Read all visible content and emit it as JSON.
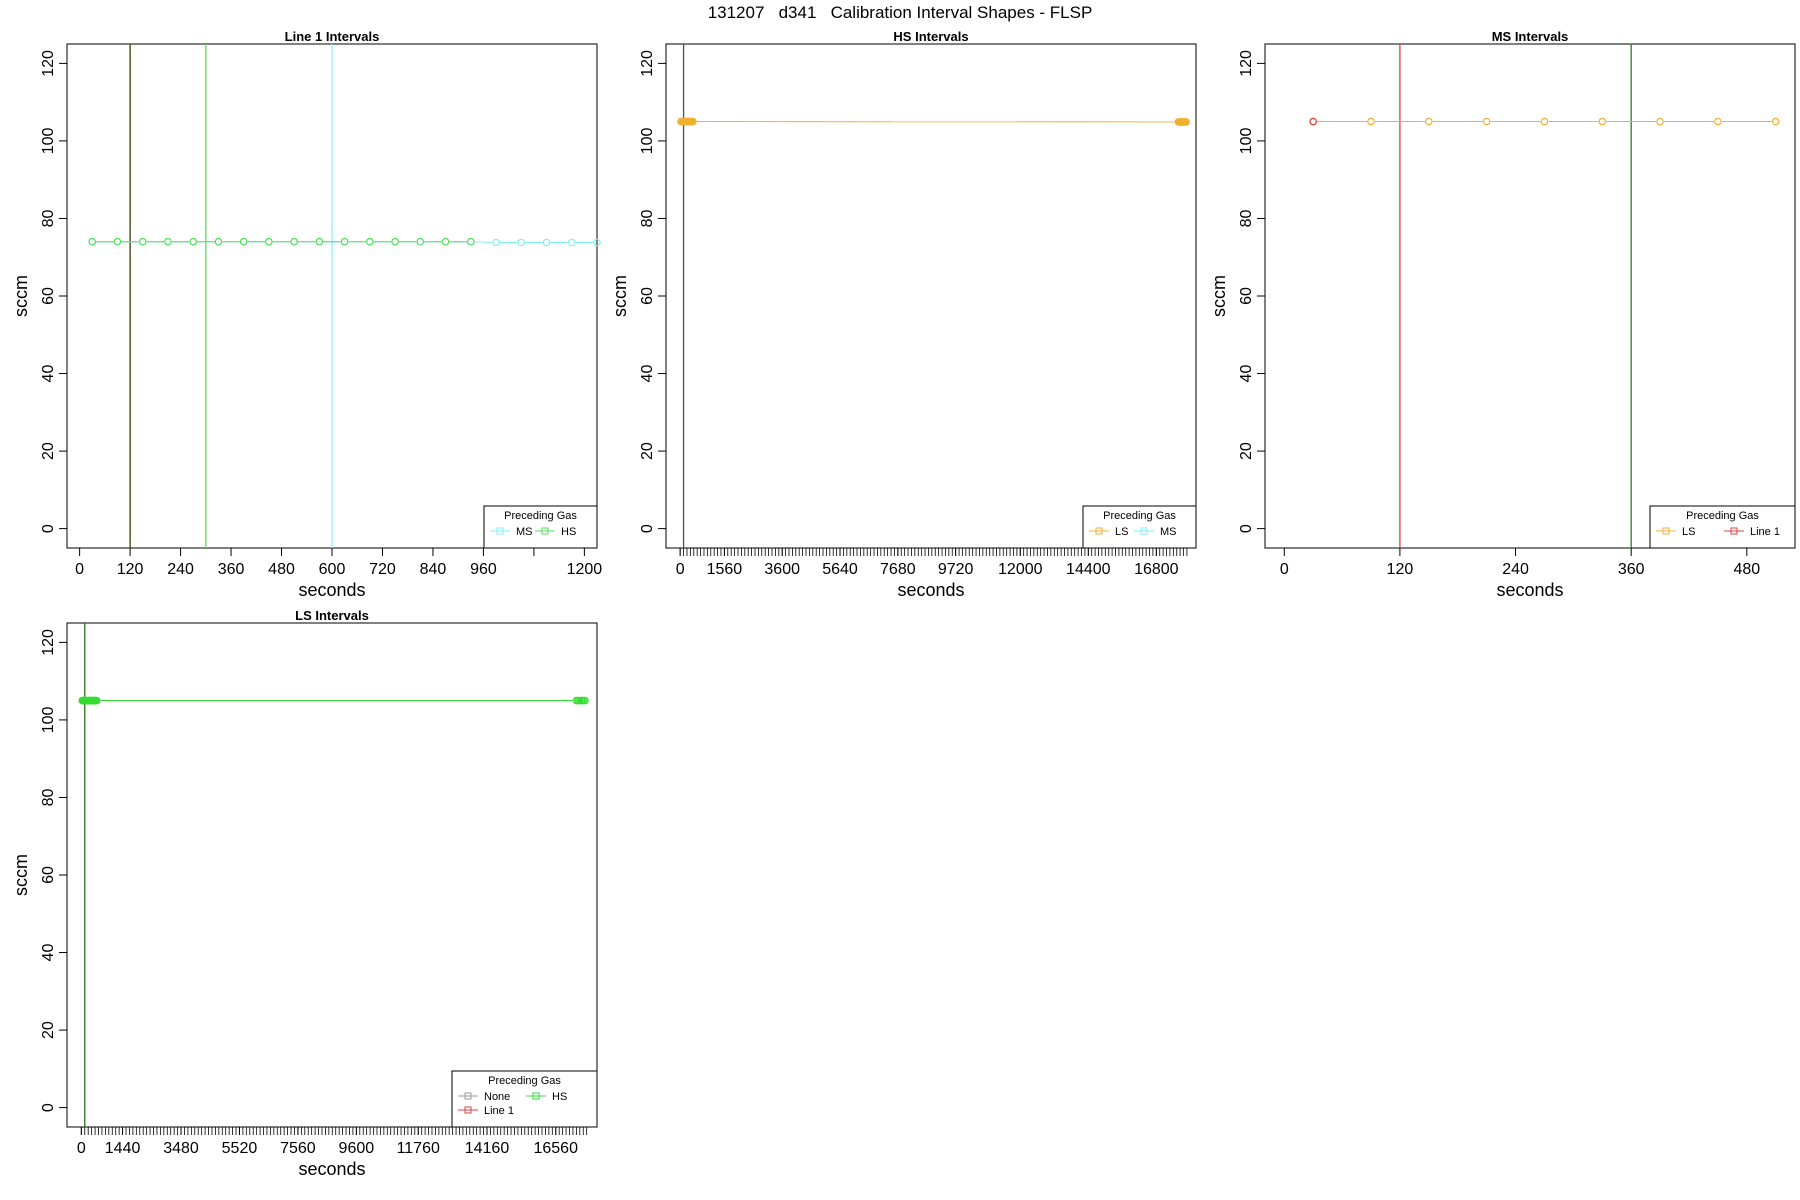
{
  "figure_title": "131207   d341   Calibration Interval Shapes - FLSP",
  "chart_data": [
    {
      "type": "scatter",
      "title": "Line 1 Intervals",
      "xlabel": "seconds",
      "ylabel": "sccm",
      "xlim": [
        -30,
        1230
      ],
      "ylim": [
        -5,
        125
      ],
      "xticks": [
        0,
        120,
        240,
        360,
        480,
        600,
        720,
        840,
        960,
        1080,
        1200
      ],
      "xtick_labels": [
        "0",
        "120",
        "240",
        "360",
        "480",
        "600",
        "720",
        "840",
        "960",
        "",
        "1200"
      ],
      "yticks": [
        0,
        20,
        40,
        60,
        80,
        100,
        120
      ],
      "vlines": [
        {
          "x": 120,
          "color": "#2e6b1e"
        },
        {
          "x": 120,
          "color": "#5a4a1e"
        },
        {
          "x": 300,
          "color": "#55e055"
        },
        {
          "x": 600,
          "color": "#8ef2f2"
        }
      ],
      "series": [
        {
          "name": "MS",
          "color": "#7ff0f0",
          "x": [
            30,
            90,
            150,
            210,
            270,
            330,
            390,
            450,
            510,
            570,
            630,
            690,
            750,
            810,
            870,
            930,
            990,
            1050,
            1110,
            1170,
            1230
          ],
          "y": [
            74,
            74,
            74,
            74,
            74,
            74,
            74,
            74,
            74,
            74,
            74,
            74,
            74,
            74,
            74,
            74,
            73.8,
            73.8,
            73.8,
            73.8,
            73.8
          ]
        },
        {
          "name": "HS",
          "color": "#55e055",
          "x": [
            30,
            90,
            150,
            210,
            270,
            330,
            390,
            450,
            510,
            570,
            630,
            690,
            750,
            810,
            870,
            930
          ],
          "y": [
            74,
            74,
            74,
            74,
            74,
            74,
            74,
            74,
            74,
            74,
            74,
            74,
            74,
            74,
            74,
            74
          ]
        }
      ],
      "legend": {
        "title": "Preceding Gas",
        "position": "bottom-right",
        "entries": [
          {
            "label": "MS",
            "color": "#7ff0f0"
          },
          {
            "label": "HS",
            "color": "#55e055"
          }
        ]
      }
    },
    {
      "type": "scatter",
      "title": "HS Intervals",
      "xlabel": "seconds",
      "ylabel": "sccm",
      "xlim": [
        -500,
        18200
      ],
      "ylim": [
        -5,
        125
      ],
      "xticks": [
        0,
        1560,
        3600,
        5640,
        7680,
        9720,
        12000,
        14400,
        16800
      ],
      "xtick_labels": [
        "0",
        "1560",
        "3600",
        "5640",
        "7680",
        "9720",
        "12000",
        "14400",
        "16800"
      ],
      "minor_tick_step": 120,
      "minor_tick_range": [
        0,
        17880
      ],
      "yticks": [
        0,
        20,
        40,
        60,
        80,
        100,
        120
      ],
      "vlines": [
        {
          "x": 120,
          "color": "#2e6b1e"
        }
      ],
      "series": [
        {
          "name": "LS",
          "color": "#f0b030",
          "x": [
            30,
            60,
            90,
            120,
            150,
            180,
            210,
            240,
            270,
            300,
            330,
            360,
            390,
            420,
            450,
            17580,
            17610,
            17640,
            17670,
            17700,
            17730,
            17760,
            17790,
            17820,
            17850
          ],
          "y": [
            105,
            105,
            105,
            105,
            105,
            105,
            105,
            105,
            105,
            105,
            105,
            105,
            105,
            105,
            105,
            104.9,
            104.9,
            104.9,
            104.9,
            104.9,
            104.9,
            104.9,
            104.9,
            104.9,
            104.9
          ]
        }
      ],
      "legend": {
        "title": "Preceding Gas",
        "position": "bottom-right",
        "entries": [
          {
            "label": "LS",
            "color": "#f0b030"
          },
          {
            "label": "MS",
            "color": "#7ff0f0"
          }
        ]
      }
    },
    {
      "type": "scatter",
      "title": "MS Intervals",
      "xlabel": "seconds",
      "ylabel": "sccm",
      "xlim": [
        -20,
        530
      ],
      "ylim": [
        -5,
        125
      ],
      "xticks": [
        0,
        120,
        240,
        360,
        480
      ],
      "xtick_labels": [
        "0",
        "120",
        "240",
        "360",
        "480"
      ],
      "yticks": [
        0,
        20,
        40,
        60,
        80,
        100,
        120
      ],
      "vlines": [
        {
          "x": 120,
          "color": "#e04040"
        },
        {
          "x": 360,
          "color": "#2e7b2e"
        }
      ],
      "series": [
        {
          "name": "LS",
          "color": "#f0b030",
          "x": [
            30,
            90,
            150,
            210,
            270,
            330,
            390,
            450,
            510
          ],
          "y": [
            105,
            105,
            105,
            105,
            105,
            105,
            105,
            105,
            105
          ]
        },
        {
          "name": "Line 1",
          "color": "#e04040",
          "x": [
            30
          ],
          "y": [
            105
          ]
        }
      ],
      "legend": {
        "title": "Preceding Gas",
        "position": "bottom-right",
        "entries": [
          {
            "label": "LS",
            "color": "#f0b030"
          },
          {
            "label": "Line 1",
            "color": "#e04040"
          }
        ]
      }
    },
    {
      "type": "scatter",
      "title": "LS Intervals",
      "xlabel": "seconds",
      "ylabel": "sccm",
      "xlim": [
        -500,
        18000
      ],
      "ylim": [
        -5,
        125
      ],
      "xticks": [
        0,
        1440,
        3480,
        5520,
        7560,
        9600,
        11760,
        14160,
        16560
      ],
      "xtick_labels": [
        "0",
        "1440",
        "3480",
        "5520",
        "7560",
        "9600",
        "11760",
        "14160",
        "16560"
      ],
      "minor_tick_step": 120,
      "minor_tick_range": [
        0,
        17640
      ],
      "yticks": [
        0,
        20,
        40,
        60,
        80,
        100,
        120
      ],
      "vlines": [
        {
          "x": 120,
          "color": "#2e6b1e"
        }
      ],
      "series": [
        {
          "name": "HS",
          "color": "#33dd33",
          "x": [
            30,
            60,
            90,
            120,
            150,
            180,
            210,
            240,
            270,
            300,
            330,
            360,
            390,
            420,
            450,
            480,
            510,
            540,
            17280,
            17340,
            17400,
            17460,
            17520,
            17580
          ],
          "y": [
            105,
            105,
            105,
            105,
            105,
            105,
            105,
            105,
            105,
            105,
            105,
            105,
            105,
            105,
            105,
            105,
            105,
            105,
            105,
            105,
            105,
            105,
            105,
            105
          ]
        }
      ],
      "legend": {
        "title": "Preceding Gas",
        "position": "bottom-right",
        "entries": [
          {
            "label": "None",
            "color": "#999999"
          },
          {
            "label": "HS",
            "color": "#33dd33"
          },
          {
            "label": "Line 1",
            "color": "#e04040"
          }
        ]
      }
    }
  ]
}
